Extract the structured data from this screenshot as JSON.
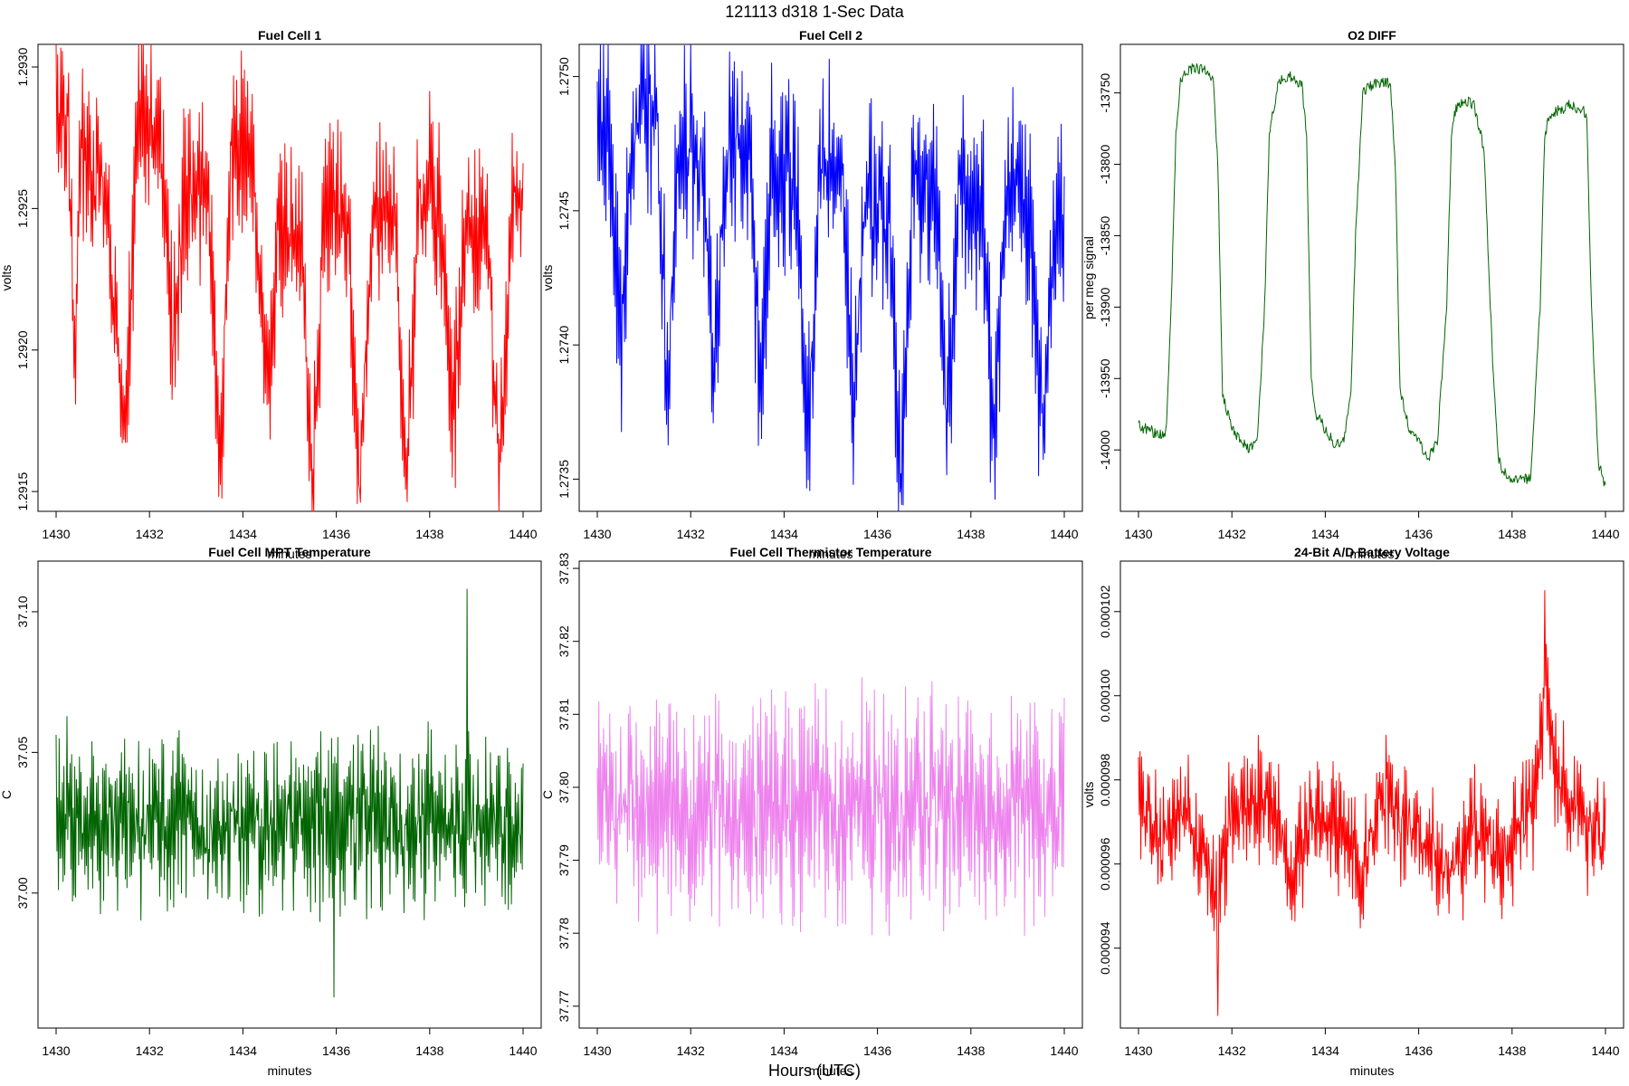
{
  "page_title": "121113   d318   1-Sec Data",
  "footer_label": "Hours (UTC)",
  "chart_data": [
    {
      "id": "fc1",
      "type": "line",
      "title": "Fuel Cell 1",
      "xlabel": "minutes",
      "ylabel": "volts",
      "color": "#ff0000",
      "xlim": [
        1430,
        1440
      ],
      "ylim": [
        1.29143,
        1.29308
      ],
      "xticks": [
        "1430",
        "1432",
        "1434",
        "1436",
        "1438",
        "1440"
      ],
      "yticks": [
        1.2915,
        1.292,
        1.2925,
        1.293
      ],
      "ytick_labels": [
        "1.2915",
        "1.2920",
        "1.2925",
        "1.2930"
      ],
      "x": [
        1430.0,
        1430.25,
        1430.4,
        1430.5,
        1430.75,
        1431.0,
        1431.5,
        1431.75,
        1432.0,
        1432.25,
        1432.5,
        1432.75,
        1433.0,
        1433.25,
        1433.5,
        1433.75,
        1434.0,
        1434.25,
        1434.5,
        1434.75,
        1435.0,
        1435.25,
        1435.5,
        1435.75,
        1436.0,
        1436.25,
        1436.5,
        1436.75,
        1437.0,
        1437.25,
        1437.5,
        1437.75,
        1438.0,
        1438.25,
        1438.5,
        1438.75,
        1439.0,
        1439.25,
        1439.5,
        1439.75,
        1440.0
      ],
      "values": [
        1.2929,
        1.2928,
        1.292,
        1.2927,
        1.2926,
        1.2926,
        1.2917,
        1.2928,
        1.2928,
        1.2927,
        1.292,
        1.2926,
        1.2926,
        1.2926,
        1.2916,
        1.2927,
        1.2927,
        1.2926,
        1.2918,
        1.2924,
        1.2924,
        1.2924,
        1.2915,
        1.2925,
        1.2925,
        1.2924,
        1.2915,
        1.2924,
        1.2925,
        1.2924,
        1.2915,
        1.2925,
        1.2926,
        1.2925,
        1.2917,
        1.2924,
        1.2924,
        1.2924,
        1.2915,
        1.2925,
        1.2925
      ],
      "spread": 0.0003,
      "noise_amp": 8e-05
    },
    {
      "id": "fc2",
      "type": "line",
      "title": "Fuel Cell 2",
      "xlabel": "minutes",
      "ylabel": "volts",
      "color": "#0000ff",
      "xlim": [
        1430,
        1440
      ],
      "ylim": [
        1.27338,
        1.27512
      ],
      "xticks": [
        "1430",
        "1432",
        "1434",
        "1436",
        "1438",
        "1440"
      ],
      "yticks": [
        1.2735,
        1.274,
        1.2745,
        1.275
      ],
      "ytick_labels": [
        "1.2735",
        "1.2740",
        "1.2745",
        "1.2750"
      ],
      "x": [
        1430.0,
        1430.25,
        1430.5,
        1430.75,
        1431.0,
        1431.25,
        1431.5,
        1431.75,
        1432.0,
        1432.25,
        1432.5,
        1432.75,
        1433.0,
        1433.25,
        1433.5,
        1433.75,
        1434.0,
        1434.25,
        1434.5,
        1434.75,
        1435.0,
        1435.25,
        1435.5,
        1435.75,
        1436.0,
        1436.25,
        1436.5,
        1436.75,
        1437.0,
        1437.25,
        1437.5,
        1437.75,
        1438.0,
        1438.25,
        1438.5,
        1438.75,
        1439.0,
        1439.25,
        1439.5,
        1439.75,
        1440.0
      ],
      "values": [
        1.27485,
        1.2748,
        1.274,
        1.2748,
        1.2749,
        1.2749,
        1.2739,
        1.2748,
        1.2747,
        1.2747,
        1.2739,
        1.2747,
        1.2748,
        1.2748,
        1.2738,
        1.2747,
        1.2746,
        1.2746,
        1.2736,
        1.2746,
        1.2747,
        1.2746,
        1.2738,
        1.2746,
        1.2745,
        1.2745,
        1.2734,
        1.2746,
        1.2746,
        1.2746,
        1.2737,
        1.2746,
        1.2745,
        1.2745,
        1.2736,
        1.2746,
        1.2746,
        1.2745,
        1.2737,
        1.2744,
        1.2744
      ],
      "spread": 0.00035,
      "noise_amp": 0.0001
    },
    {
      "id": "o2",
      "type": "line",
      "title": "O2 DIFF",
      "xlabel": "minutes",
      "ylabel": "per meg signal",
      "color": "#006400",
      "xlim": [
        1430,
        1440
      ],
      "ylim": [
        -14043,
        -13716
      ],
      "xticks": [
        "1430",
        "1432",
        "1434",
        "1436",
        "1438",
        "1440"
      ],
      "yticks": [
        -14000,
        -13950,
        -13900,
        -13850,
        -13800,
        -13750
      ],
      "ytick_labels": [
        "-14000",
        "-13950",
        "-13900",
        "-13850",
        "-13800",
        "-13750"
      ],
      "x": [
        1430.0,
        1430.5,
        1430.6,
        1430.7,
        1430.8,
        1430.9,
        1431.0,
        1431.2,
        1431.4,
        1431.6,
        1431.7,
        1431.8,
        1432.0,
        1432.2,
        1432.4,
        1432.55,
        1432.7,
        1432.8,
        1433.0,
        1433.3,
        1433.5,
        1433.6,
        1433.7,
        1433.8,
        1434.0,
        1434.2,
        1434.4,
        1434.55,
        1434.65,
        1434.8,
        1435.0,
        1435.2,
        1435.4,
        1435.5,
        1435.6,
        1435.8,
        1436.0,
        1436.2,
        1436.4,
        1436.6,
        1436.7,
        1436.8,
        1437.0,
        1437.2,
        1437.4,
        1437.6,
        1437.7,
        1437.8,
        1438.0,
        1438.2,
        1438.4,
        1438.6,
        1438.7,
        1438.8,
        1439.0,
        1439.3,
        1439.6,
        1439.7,
        1439.85,
        1440.0
      ],
      "values": [
        -13983,
        -13990,
        -13985,
        -13900,
        -13780,
        -13740,
        -13735,
        -13732,
        -13733,
        -13740,
        -13800,
        -13960,
        -13985,
        -13995,
        -14000,
        -13990,
        -13900,
        -13780,
        -13742,
        -13738,
        -13745,
        -13780,
        -13950,
        -13975,
        -13985,
        -13995,
        -13995,
        -13960,
        -13850,
        -13750,
        -13745,
        -13742,
        -13745,
        -13800,
        -13960,
        -13985,
        -13995,
        -14005,
        -13995,
        -13900,
        -13780,
        -13760,
        -13755,
        -13760,
        -13790,
        -13950,
        -14005,
        -14015,
        -14020,
        -14020,
        -14020,
        -13900,
        -13780,
        -13765,
        -13762,
        -13758,
        -13765,
        -13900,
        -14010,
        -14025
      ],
      "spread": 0,
      "noise_amp": 4
    },
    {
      "id": "mpt",
      "type": "line",
      "title": "Fuel Cell MPT Temperature",
      "xlabel": "minutes",
      "ylabel": "C",
      "color": "#006400",
      "xlim": [
        1430,
        1440
      ],
      "ylim": [
        36.952,
        37.118
      ],
      "xticks": [
        "1430",
        "1432",
        "1434",
        "1436",
        "1438",
        "1440"
      ],
      "yticks": [
        37.0,
        37.05,
        37.1
      ],
      "ytick_labels": [
        "37.00",
        "37.05",
        "37.10"
      ],
      "x": [
        1430.0,
        1440.0
      ],
      "values": [
        37.025,
        37.025
      ],
      "spread": 0.028,
      "noise_amp": 0.012,
      "spikes": [
        {
          "x": 1438.8,
          "y": 37.108
        },
        {
          "x": 1435.95,
          "y": 36.963
        }
      ]
    },
    {
      "id": "therm",
      "type": "line",
      "title": "Fuel Cell Thermistor Temperature",
      "xlabel": "minutes",
      "ylabel": "C",
      "color": "#ee82ee",
      "xlim": [
        1430,
        1440
      ],
      "ylim": [
        37.767,
        37.831
      ],
      "xticks": [
        "1430",
        "1432",
        "1434",
        "1436",
        "1438",
        "1440"
      ],
      "yticks": [
        37.77,
        37.78,
        37.79,
        37.8,
        37.81,
        37.82,
        37.83
      ],
      "ytick_labels": [
        "37.77",
        "37.78",
        "37.79",
        "37.80",
        "37.81",
        "37.82",
        "37.83"
      ],
      "x": [
        1430.0,
        1440.0
      ],
      "values": [
        37.797,
        37.797
      ],
      "spread": 0.014,
      "noise_amp": 0.005
    },
    {
      "id": "batt",
      "type": "line",
      "title": "24-Bit A/D Battery Voltage",
      "xlabel": "minutes",
      "ylabel": "volts",
      "color": "#ff0000",
      "xlim": [
        1430,
        1440
      ],
      "ylim": [
        9.21e-05,
        0.0001032
      ],
      "xticks": [
        "1430",
        "1432",
        "1434",
        "1436",
        "1438",
        "1440"
      ],
      "yticks": [
        9.4e-05,
        9.6e-05,
        9.8e-05,
        0.0001,
        0.000102
      ],
      "ytick_labels": [
        "0.000094",
        "0.000096",
        "0.000098",
        "0.000100",
        "0.000102"
      ],
      "x": [
        1430.0,
        1430.5,
        1431.0,
        1431.4,
        1431.7,
        1432.0,
        1432.5,
        1433.0,
        1433.3,
        1433.7,
        1434.0,
        1434.5,
        1434.8,
        1435.2,
        1435.6,
        1436.0,
        1436.5,
        1436.8,
        1437.2,
        1437.6,
        1438.0,
        1438.5,
        1438.7,
        1438.85,
        1439.0,
        1439.5,
        1439.8,
        1440.0
      ],
      "values": [
        9.75e-05,
        9.65e-05,
        9.75e-05,
        9.6e-05,
        9.5e-05,
        9.75e-05,
        9.75e-05,
        9.72e-05,
        9.55e-05,
        9.72e-05,
        9.7e-05,
        9.68e-05,
        9.55e-05,
        9.78e-05,
        9.7e-05,
        9.65e-05,
        9.62e-05,
        9.6e-05,
        9.7e-05,
        9.62e-05,
        9.65e-05,
        9.75e-05,
        0.0001005,
        9.9e-05,
        9.78e-05,
        9.72e-05,
        9.65e-05,
        9.68e-05
      ],
      "spread": 1.2e-06,
      "noise_amp": 6e-07,
      "spikes": [
        {
          "x": 1438.7,
          "y": 0.0001025
        },
        {
          "x": 1431.7,
          "y": 9.24e-05
        }
      ]
    }
  ]
}
